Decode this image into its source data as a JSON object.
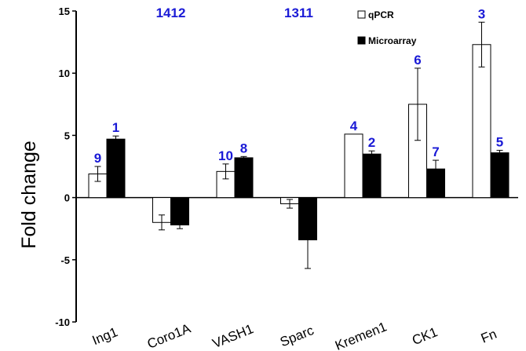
{
  "chart_data": {
    "type": "bar",
    "title": "",
    "xlabel": "",
    "ylabel": "Fold change",
    "ylim": [
      -10,
      15
    ],
    "yticks": [
      -10,
      -5,
      0,
      5,
      10,
      15
    ],
    "categories": [
      "Ing1",
      "Coro1A",
      "VASH1",
      "Sparc",
      "Kremen1",
      "CK1",
      "Fn"
    ],
    "series": [
      {
        "name": "qPCR",
        "color": "#ffffff",
        "values": [
          1.9,
          -2.0,
          2.1,
          -0.5,
          5.1,
          7.5,
          12.3
        ],
        "error": [
          0.6,
          0.6,
          0.6,
          0.35,
          0,
          2.9,
          1.8
        ]
      },
      {
        "name": "Microarray",
        "color": "#000000",
        "values": [
          4.7,
          -2.2,
          3.2,
          -3.4,
          3.5,
          2.3,
          3.6
        ],
        "error": [
          0.25,
          0.3,
          0.1,
          2.3,
          0.25,
          0.7,
          0.2
        ]
      }
    ],
    "annotations": [
      {
        "text": "9",
        "category": "Ing1",
        "series": "qPCR"
      },
      {
        "text": "1",
        "category": "Ing1",
        "series": "Microarray"
      },
      {
        "text": "10",
        "category": "VASH1",
        "series": "qPCR"
      },
      {
        "text": "8",
        "category": "VASH1",
        "series": "Microarray"
      },
      {
        "text": "4",
        "category": "Kremen1",
        "series": "qPCR"
      },
      {
        "text": "2",
        "category": "Kremen1",
        "series": "Microarray"
      },
      {
        "text": "6",
        "category": "CK1",
        "series": "qPCR"
      },
      {
        "text": "7",
        "category": "CK1",
        "series": "Microarray"
      },
      {
        "text": "3",
        "category": "Fn",
        "series": "qPCR"
      },
      {
        "text": "5",
        "category": "Fn",
        "series": "Microarray"
      }
    ],
    "top_labels": [
      {
        "text": "1412",
        "category": "Coro1A"
      },
      {
        "text": "1311",
        "category": "Sparc"
      }
    ],
    "legend": "top-right",
    "grid": false
  }
}
